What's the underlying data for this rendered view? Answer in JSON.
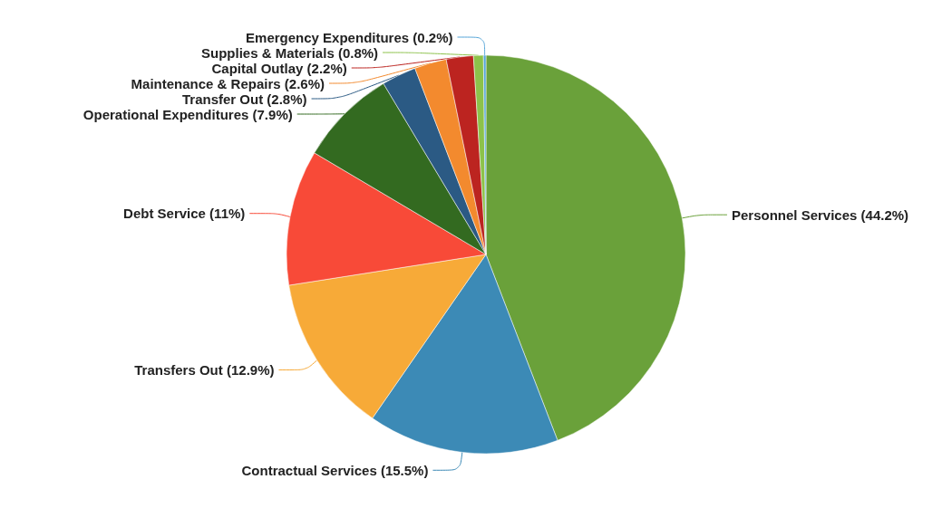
{
  "chart_data": {
    "type": "pie",
    "categories": [
      "Personnel Services",
      "Contractual Services",
      "Transfers Out",
      "Debt Service",
      "Operational Expenditures",
      "Transfer Out",
      "Maintenance & Repairs",
      "Capital Outlay",
      "Supplies & Materials",
      "Emergency Expenditures"
    ],
    "values": [
      44.2,
      15.5,
      12.9,
      11,
      7.9,
      2.8,
      2.6,
      2.2,
      0.8,
      0.2
    ],
    "value_labels": [
      "(44.2%)",
      "(15.5%)",
      "(12.9%)",
      "(11%)",
      "(7.9%)",
      "(2.8%)",
      "(2.6%)",
      "(2.2%)",
      "(0.8%)",
      "(0.2%)"
    ],
    "colors": [
      "#6aa13a",
      "#3c8ab6",
      "#f7aa38",
      "#f84a38",
      "#336a20",
      "#2b5a84",
      "#f38a2e",
      "#bc2420",
      "#8cc24a",
      "#55a5d8"
    ],
    "legend": false
  }
}
